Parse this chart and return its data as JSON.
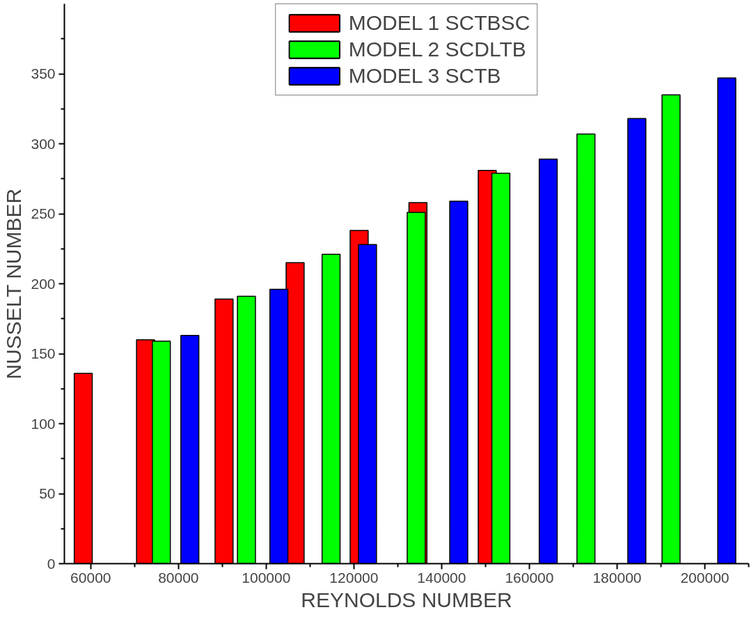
{
  "chart_data": {
    "type": "bar",
    "xlabel": "REYNOLDS NUMBER",
    "ylabel": "NUSSELT NUMBER",
    "xlim": [
      54000,
      210000
    ],
    "xticks": [
      60000,
      80000,
      100000,
      120000,
      140000,
      160000,
      180000,
      200000
    ],
    "ylim": [
      0,
      400
    ],
    "yticks": [
      0,
      50,
      100,
      150,
      200,
      250,
      300,
      350
    ],
    "grid": false,
    "legend": "top",
    "series": [
      {
        "name": "MODEL 1 SCTBSC",
        "color": "#ff0000",
        "x": [
          58300,
          72500,
          90400,
          106600,
          121200,
          134600,
          150400
        ],
        "values": [
          136,
          160,
          189,
          215,
          238,
          258,
          281
        ]
      },
      {
        "name": "MODEL 2 SCDLTB",
        "color": "#00ff00",
        "x": [
          76100,
          95500,
          114800,
          134200,
          153500,
          172900,
          192300
        ],
        "values": [
          159,
          191,
          221,
          251,
          279,
          307,
          335
        ]
      },
      {
        "name": "MODEL 3 SCTB",
        "color": "#0000ff",
        "x": [
          82600,
          102900,
          123100,
          143900,
          164300,
          184500,
          205000
        ],
        "values": [
          163,
          196,
          228,
          259,
          289,
          318,
          347
        ]
      }
    ]
  }
}
